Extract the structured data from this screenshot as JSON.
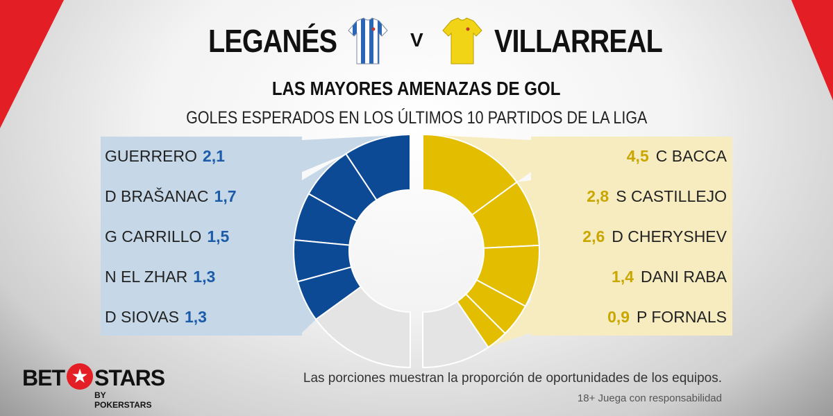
{
  "header": {
    "home_team": "LEGANÉS",
    "away_team": "VILLARREAL",
    "vs_label": "V",
    "home_jersey_icon": "blue-white-striped-jersey-icon",
    "away_jersey_icon": "yellow-jersey-icon"
  },
  "footer": {
    "logo_bet": "BET",
    "logo_stars": "STARS",
    "logo_by": "BY POKERSTARS",
    "star_icon": "star-icon",
    "note": "Las porciones muestran la proporción de oportunidades de los equipos.",
    "responsibility": "18+ Juega con responsabilidad"
  },
  "colors": {
    "home": "#0d4a96",
    "away": "#e3bd00",
    "remainder": "#e4e4e4",
    "home_label": "#1b5ba8",
    "away_label": "#c9a700",
    "brand_red": "#e31e24"
  },
  "chart_data": {
    "type": "donut",
    "title": "LAS MAYORES AMENAZAS DE GOL",
    "subtitle": "GOLES ESPERADOS EN LOS ÚLTIMOS 10 PARTIDOS DE LA LIGA",
    "series": [
      {
        "name": "LEGANÉS",
        "players": [
          "GUERRERO",
          "D BRAŠANAC",
          "G CARRILLO",
          "N EL ZHAR",
          "D SIOVAS"
        ],
        "values": [
          2.1,
          1.7,
          1.5,
          1.3,
          1.3
        ],
        "labels": [
          "2,1",
          "1,7",
          "1,5",
          "1,3",
          "1,3"
        ],
        "team_share": 0.7
      },
      {
        "name": "VILLARREAL",
        "players": [
          "C BACCA",
          "S CASTILLEJO",
          "D CHERYSHEV",
          "DANI RABA",
          "P FORNALS"
        ],
        "values": [
          4.5,
          2.8,
          2.6,
          1.4,
          0.9
        ],
        "labels": [
          "4,5",
          "2,8",
          "2,6",
          "1,4",
          "0,9"
        ],
        "team_share": 0.81
      }
    ]
  }
}
